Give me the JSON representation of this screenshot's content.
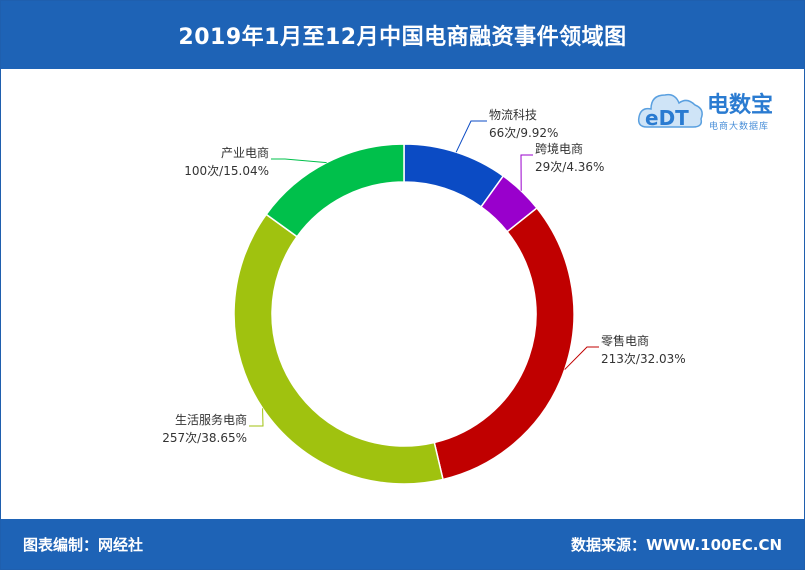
{
  "title": "2019年1月至12月中国电商融资事件领域图",
  "footer": {
    "left": "图表编制：网经社",
    "right_label": "数据来源：",
    "right_value": "WWW.100EC.CN"
  },
  "logo": {
    "brand": "电数宝",
    "subtitle": "电商大数据库",
    "mark_text": "eDT",
    "icon": "cloud-icon"
  },
  "colors": {
    "header_bg": "#1e63b6",
    "leader_line": "#666666"
  },
  "chart_data": {
    "type": "pie",
    "variant": "donut",
    "start": "12 o'clock",
    "direction": "clockwise",
    "slices": [
      {
        "label": "物流科技",
        "count_text": "66次/9.92%",
        "value": 66,
        "percent": 9.92,
        "color": "#0b4bc4"
      },
      {
        "label": "跨境电商",
        "count_text": "29次/4.36%",
        "value": 29,
        "percent": 4.36,
        "color": "#9900cc"
      },
      {
        "label": "零售电商",
        "count_text": "213次/32.03%",
        "value": 213,
        "percent": 32.03,
        "color": "#c00000"
      },
      {
        "label": "生活服务电商",
        "count_text": "257次/38.65%",
        "value": 257,
        "percent": 38.65,
        "color": "#a0c20f"
      },
      {
        "label": "产业电商",
        "count_text": "100次/15.04%",
        "value": 100,
        "percent": 15.04,
        "color": "#00c04b"
      }
    ]
  }
}
